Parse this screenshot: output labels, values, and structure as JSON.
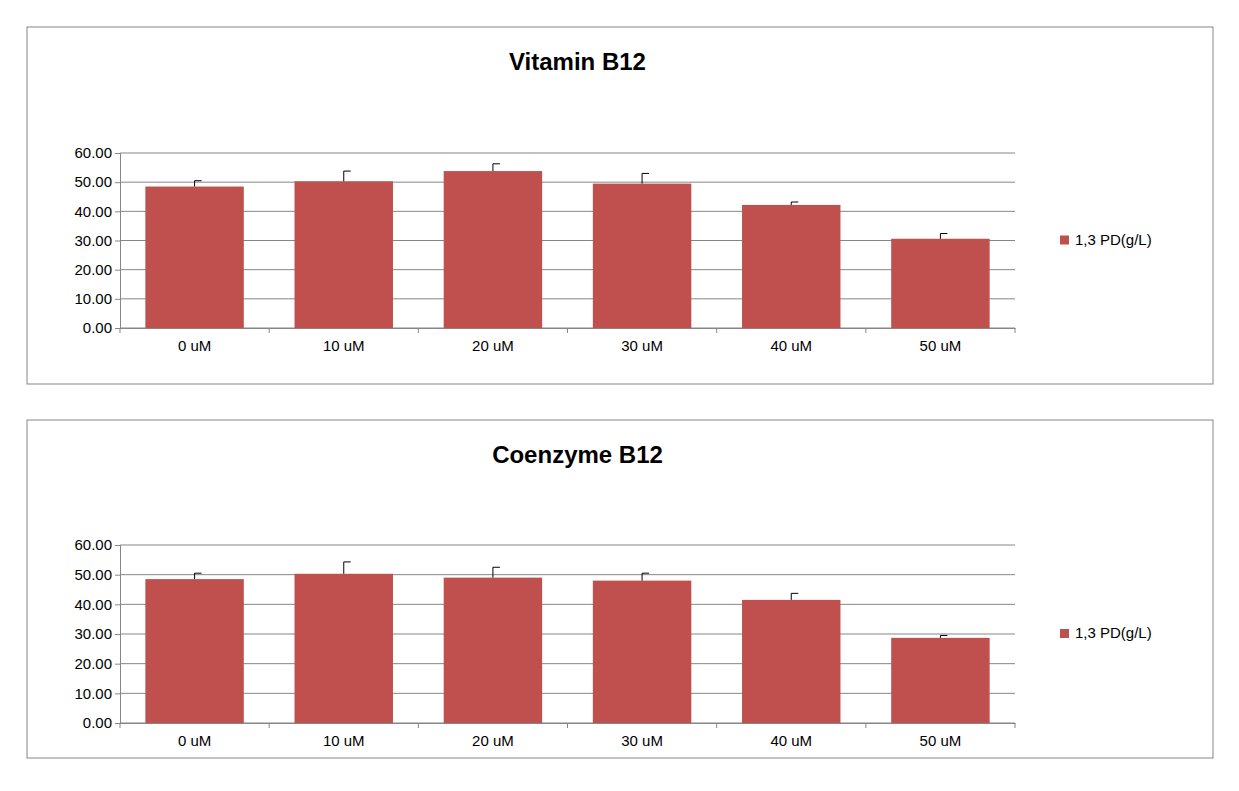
{
  "chart_data": [
    {
      "type": "bar",
      "title": "Vitamin B12",
      "categories": [
        "0 uM",
        "10 uM",
        "20 uM",
        "30 uM",
        "40 uM",
        "50 uM"
      ],
      "series": [
        {
          "name": "1,3 PD(g/L)",
          "color": "#c0504d",
          "values": [
            48.5,
            50.3,
            53.8,
            49.5,
            42.2,
            30.6
          ],
          "errors": [
            2.0,
            3.5,
            2.5,
            3.5,
            1.0,
            1.8
          ]
        }
      ],
      "ylim": [
        0,
        60
      ],
      "yticks": [
        {
          "value": 0,
          "label": "0.00"
        },
        {
          "value": 10,
          "label": "10.00"
        },
        {
          "value": 20,
          "label": "20.00"
        },
        {
          "value": 30,
          "label": "30.00"
        },
        {
          "value": 40,
          "label": "40.00"
        },
        {
          "value": 50,
          "label": "50.00"
        },
        {
          "value": 60,
          "label": "60.00"
        }
      ],
      "grid": true,
      "legend": "right"
    },
    {
      "type": "bar",
      "title": "Coenzyme B12",
      "categories": [
        "0 uM",
        "10 uM",
        "20 uM",
        "30 uM",
        "40 uM",
        "50 uM"
      ],
      "series": [
        {
          "name": "1,3 PD(g/L)",
          "color": "#c0504d",
          "values": [
            48.5,
            50.3,
            49.0,
            48.0,
            41.5,
            28.7
          ],
          "errors": [
            2.0,
            4.0,
            3.5,
            2.5,
            2.2,
            0.8
          ]
        }
      ],
      "ylim": [
        0,
        60
      ],
      "yticks": [
        {
          "value": 0,
          "label": "0.00"
        },
        {
          "value": 10,
          "label": "10.00"
        },
        {
          "value": 20,
          "label": "20.00"
        },
        {
          "value": 30,
          "label": "30.00"
        },
        {
          "value": 40,
          "label": "40.00"
        },
        {
          "value": 50,
          "label": "50.00"
        },
        {
          "value": 60,
          "label": "60.00"
        }
      ],
      "grid": true,
      "legend": "right"
    }
  ]
}
